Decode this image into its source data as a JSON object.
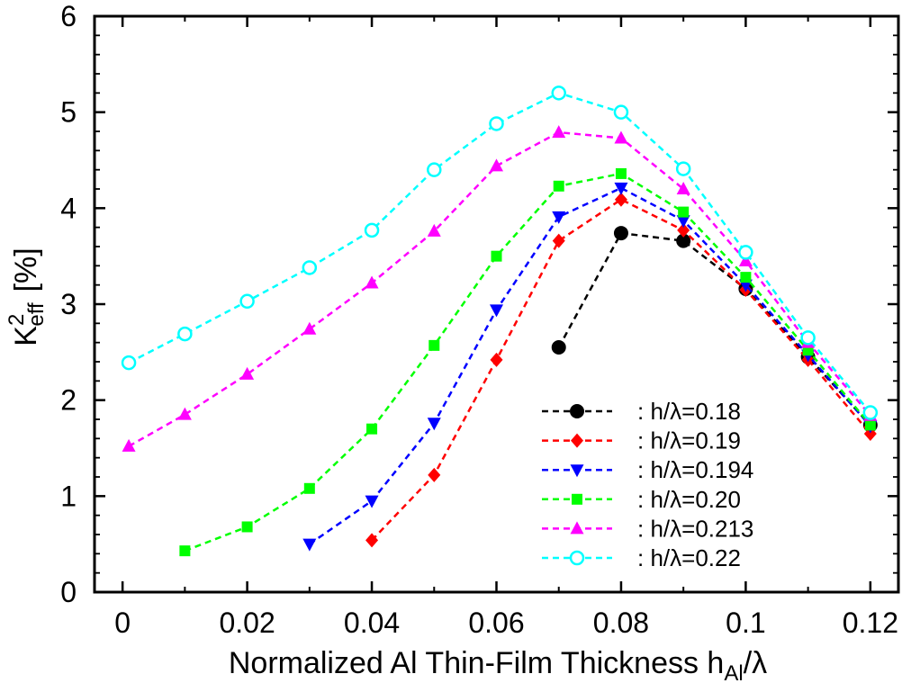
{
  "chart_data": {
    "type": "line",
    "xlabel": "Normalized  Al  Thin-Film  Thickness  h",
    "xlabel_sub": "Al",
    "xlabel_tail": "/λ",
    "ylabel": "K",
    "ylabel_sup": "2",
    "ylabel_sub": "eff",
    "ylabel_unit": "[%]",
    "xlim": [
      -0.0045,
      0.1245
    ],
    "ylim": [
      0,
      6
    ],
    "xticks": [
      0,
      0.02,
      0.04,
      0.06,
      0.08,
      0.1,
      0.12
    ],
    "xtick_labels": [
      "0",
      "0.02",
      "0.04",
      "0.06",
      "0.08",
      "0.1",
      "0.12"
    ],
    "yticks": [
      0,
      1,
      2,
      3,
      4,
      5,
      6
    ],
    "ytick_labels": [
      "0",
      "1",
      "2",
      "3",
      "4",
      "5",
      "6"
    ],
    "grid": false,
    "legend_position": "bottom-right",
    "series": [
      {
        "name": ":  h/λ=0.18",
        "color": "#000000",
        "marker": "circle",
        "x": [
          0.07,
          0.08,
          0.09,
          0.1,
          0.11,
          0.12
        ],
        "y": [
          2.55,
          3.74,
          3.66,
          3.16,
          2.45,
          1.74
        ]
      },
      {
        "name": ":  h/λ=0.19",
        "color": "#ff0000",
        "marker": "diamond",
        "x": [
          0.04,
          0.05,
          0.06,
          0.07,
          0.08,
          0.09,
          0.1,
          0.11,
          0.12
        ],
        "y": [
          0.54,
          1.22,
          2.42,
          3.66,
          4.09,
          3.77,
          3.15,
          2.42,
          1.65
        ]
      },
      {
        "name": ":  h/λ=0.194",
        "color": "#0000ff",
        "marker": "triangle-down",
        "x": [
          0.03,
          0.04,
          0.05,
          0.06,
          0.07,
          0.08,
          0.09,
          0.1,
          0.11,
          0.12
        ],
        "y": [
          0.5,
          0.95,
          1.76,
          2.94,
          3.91,
          4.21,
          3.87,
          3.2,
          2.47,
          1.73
        ]
      },
      {
        "name": ":  h/λ=0.20",
        "color": "#00ff00",
        "marker": "square",
        "x": [
          0.01,
          0.02,
          0.03,
          0.04,
          0.05,
          0.06,
          0.07,
          0.08,
          0.09,
          0.1,
          0.11,
          0.12
        ],
        "y": [
          0.43,
          0.68,
          1.08,
          1.7,
          2.57,
          3.5,
          4.23,
          4.36,
          3.96,
          3.28,
          2.52,
          1.74
        ]
      },
      {
        "name": ":  h/λ=0.213",
        "color": "#ff00ff",
        "marker": "triangle-up",
        "x": [
          0.001,
          0.01,
          0.02,
          0.03,
          0.04,
          0.05,
          0.06,
          0.07,
          0.08,
          0.09,
          0.1,
          0.11,
          0.12
        ],
        "y": [
          1.52,
          1.85,
          2.27,
          2.74,
          3.22,
          3.76,
          4.44,
          4.79,
          4.73,
          4.2,
          3.45,
          2.6,
          1.84
        ]
      },
      {
        "name": ":  h/λ=0.22",
        "color": "#00ffff",
        "marker": "circle-open",
        "x": [
          0.001,
          0.01,
          0.02,
          0.03,
          0.04,
          0.05,
          0.06,
          0.07,
          0.08,
          0.09,
          0.1,
          0.11,
          0.12
        ],
        "y": [
          2.39,
          2.69,
          3.03,
          3.38,
          3.77,
          4.4,
          4.88,
          5.2,
          5.0,
          4.41,
          3.54,
          2.65,
          1.87
        ]
      }
    ]
  }
}
